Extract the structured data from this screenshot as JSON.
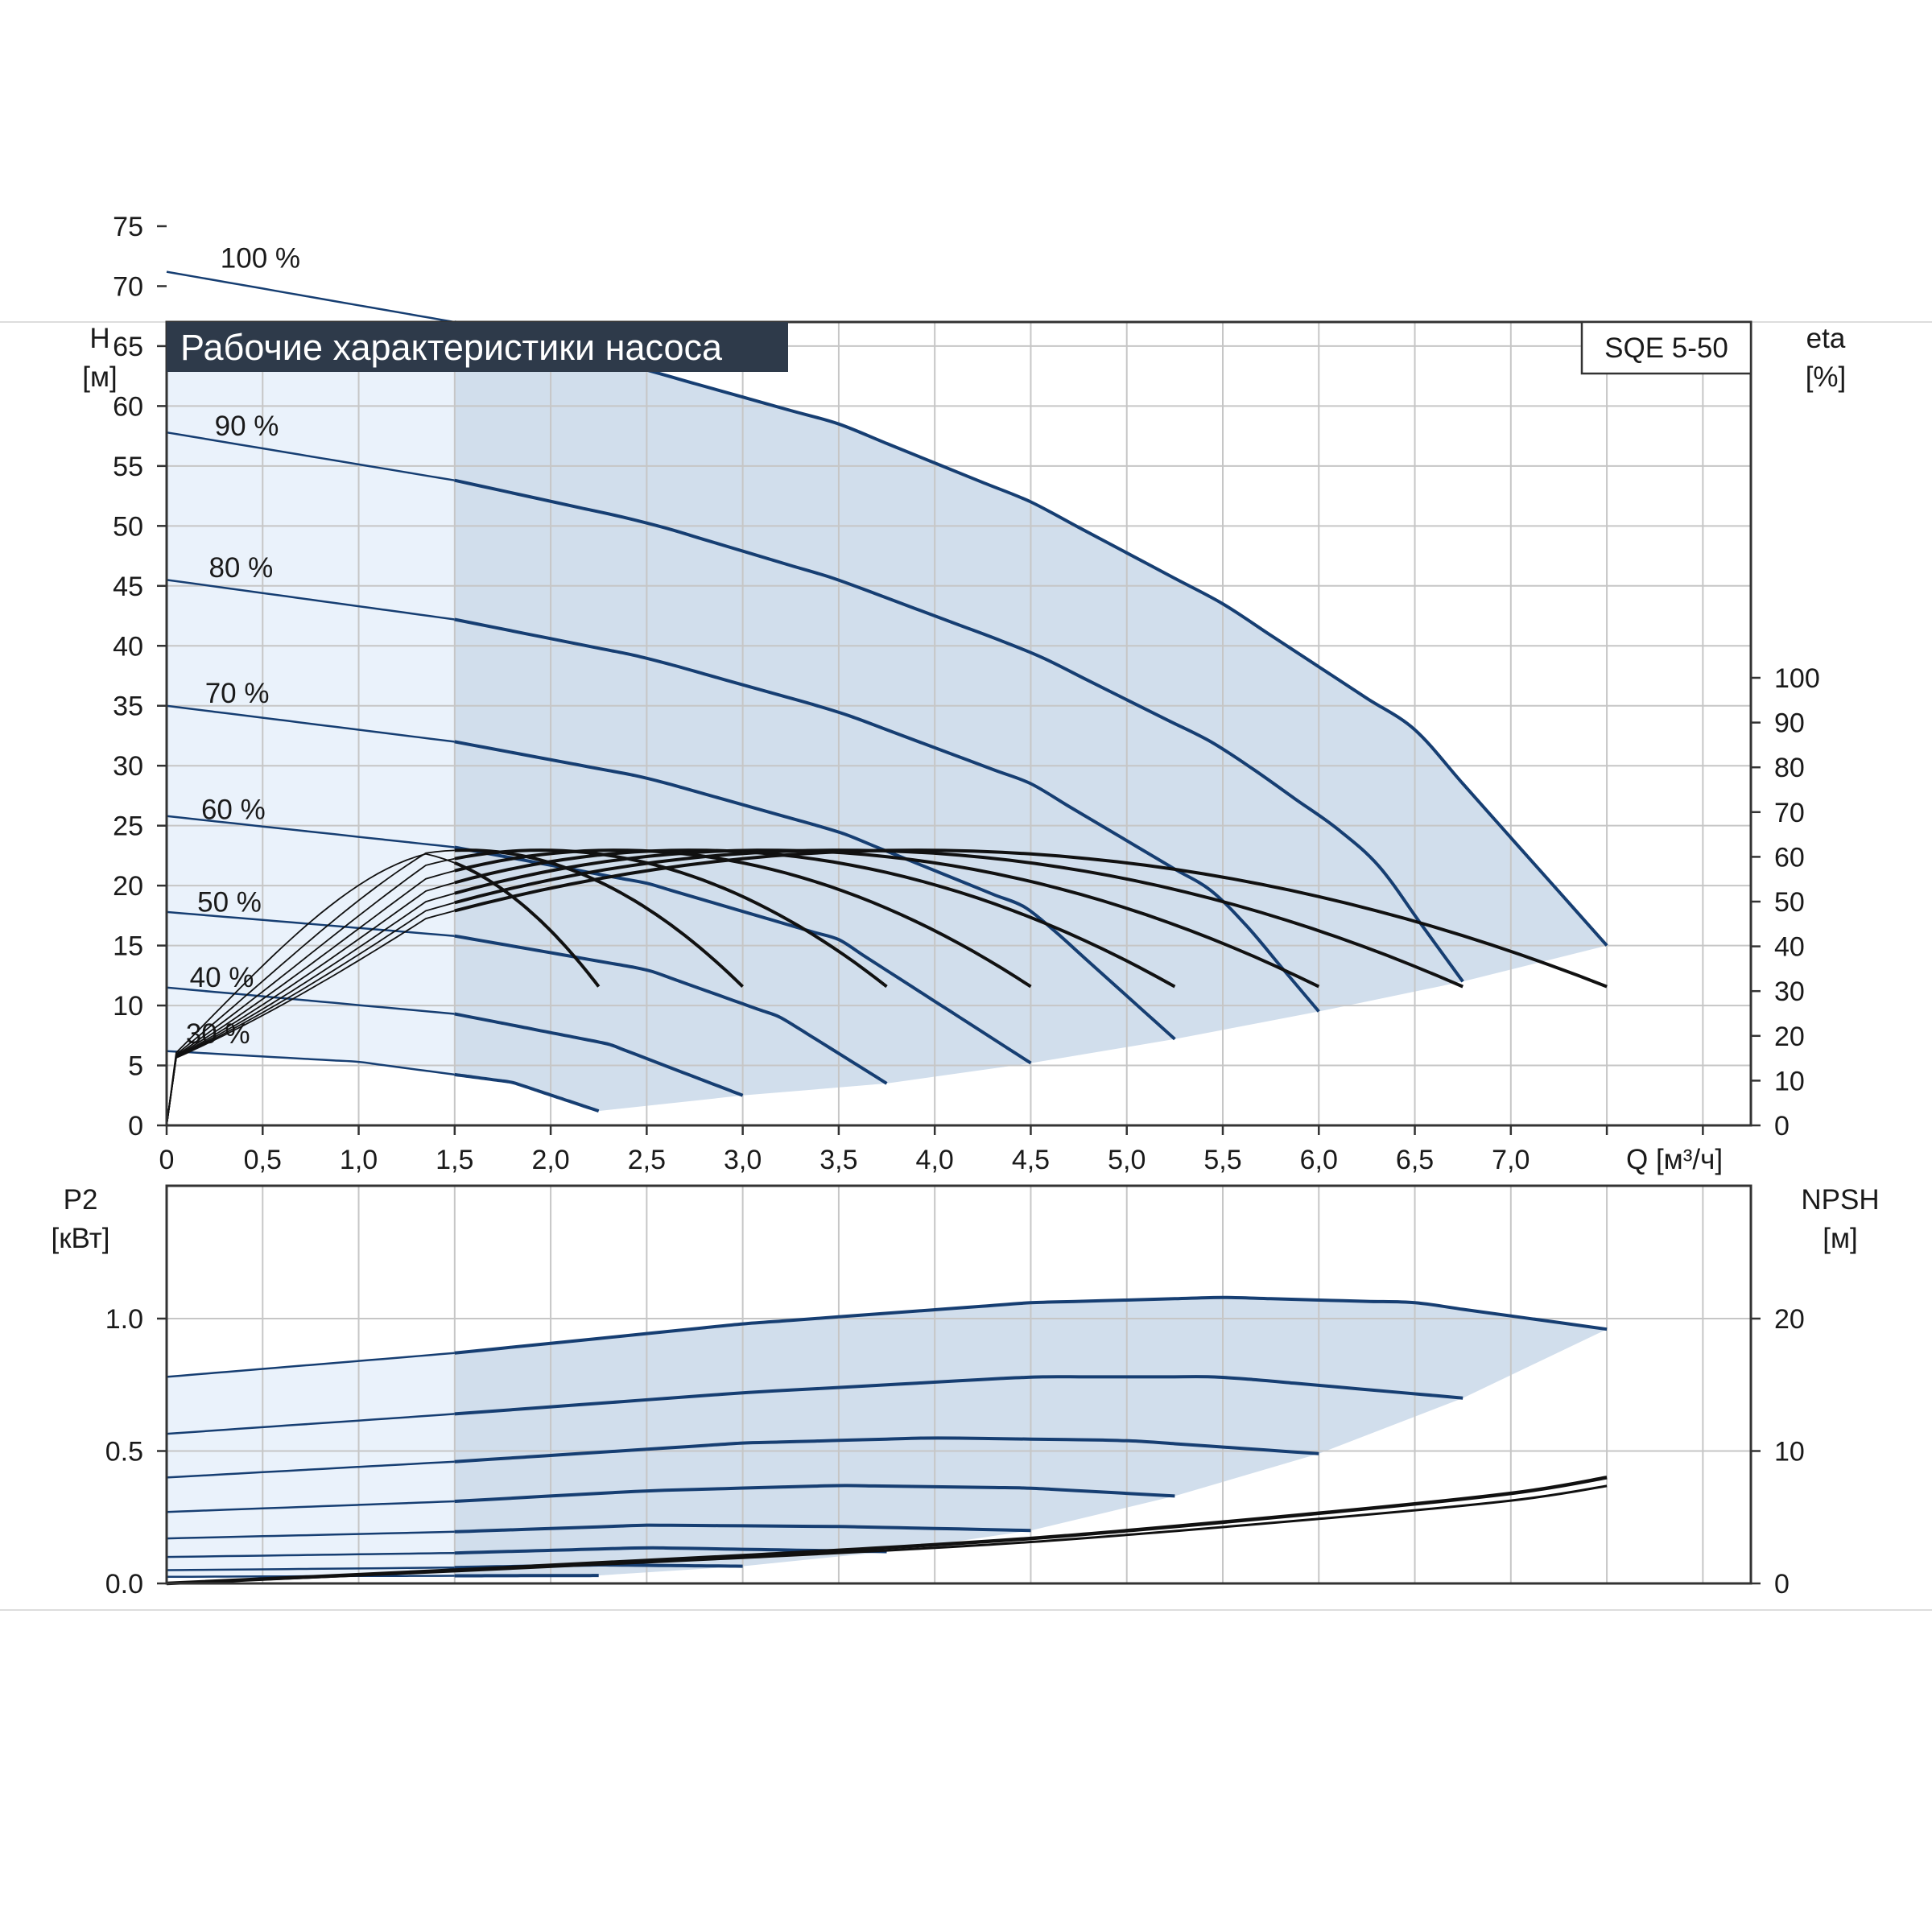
{
  "title": "Рабочие характеристики насоса",
  "model": "SQE 5-50",
  "top_axes": {
    "y_left_label": "H",
    "y_left_unit": "[м]",
    "y_right_label": "eta",
    "y_right_unit": "[%]",
    "x_label": "Q [м³/ч]",
    "y_left_ticks": [
      "0",
      "5",
      "10",
      "15",
      "20",
      "25",
      "30",
      "35",
      "40",
      "45",
      "50",
      "55",
      "60",
      "65",
      "70",
      "75"
    ],
    "y_right_ticks": [
      "0",
      "10",
      "20",
      "30",
      "40",
      "50",
      "60",
      "70",
      "80",
      "90",
      "100"
    ],
    "x_ticks": [
      "0",
      "0,5",
      "1,0",
      "1,5",
      "2,0",
      "2,5",
      "3,0",
      "3,5",
      "4,0",
      "4,5",
      "5,0",
      "5,5",
      "6,0",
      "6,5",
      "7,0"
    ]
  },
  "bottom_axes": {
    "y_left_label": "P2",
    "y_left_unit": "[кВт]",
    "y_right_label": "NPSH",
    "y_right_unit": "[м]",
    "y_left_ticks": [
      "0.0",
      "0.5",
      "1.0"
    ],
    "y_right_ticks": [
      "0",
      "10",
      "20"
    ]
  },
  "colors": {
    "curve": "#163e72",
    "eta_curve": "#111111",
    "area_fill": "#d1deec",
    "area_light": "#eaf2fb",
    "grid": "#c6c6c6",
    "title_bg": "#2e3a4a"
  },
  "chart_data": [
    {
      "type": "line",
      "panel": "top",
      "xlabel": "Q [м³/ч]",
      "ylabel": "H [м]",
      "y2label": "eta [%]",
      "xlim": [
        0,
        8.25
      ],
      "ylim": [
        0,
        75
      ],
      "y2lim": [
        0,
        100
      ],
      "grid": true,
      "head_curves": [
        {
          "name": "100 %",
          "points": [
            [
              0,
              71.2
            ],
            [
              1.5,
              67
            ],
            [
              2.5,
              63
            ],
            [
              3.5,
              58.5
            ],
            [
              4.5,
              52
            ],
            [
              5.5,
              43.5
            ],
            [
              6.5,
              33
            ],
            [
              7.5,
              15
            ]
          ]
        },
        {
          "name": "90 %",
          "points": [
            [
              0,
              57.8
            ],
            [
              1.5,
              53.8
            ],
            [
              2.5,
              50.3
            ],
            [
              3.5,
              45.5
            ],
            [
              4.5,
              39.5
            ],
            [
              5.5,
              31.5
            ],
            [
              6.25,
              23
            ],
            [
              6.75,
              12
            ]
          ]
        },
        {
          "name": "80 %",
          "points": [
            [
              0,
              45.5
            ],
            [
              1.5,
              42.2
            ],
            [
              2.5,
              39
            ],
            [
              3.5,
              34.5
            ],
            [
              4.5,
              28.5
            ],
            [
              5.5,
              19
            ],
            [
              6,
              9.5
            ]
          ]
        },
        {
          "name": "70 %",
          "points": [
            [
              0,
              35
            ],
            [
              1.5,
              32
            ],
            [
              2.5,
              29
            ],
            [
              3.5,
              24.5
            ],
            [
              4.5,
              18
            ],
            [
              5.25,
              7.2
            ]
          ]
        },
        {
          "name": "60 %",
          "points": [
            [
              0,
              25.8
            ],
            [
              1.5,
              23.2
            ],
            [
              2.5,
              20.2
            ],
            [
              3.5,
              15.5
            ],
            [
              4.5,
              5.2
            ]
          ]
        },
        {
          "name": "50 %",
          "points": [
            [
              0,
              17.8
            ],
            [
              1.5,
              15.8
            ],
            [
              2.5,
              13
            ],
            [
              3.2,
              9
            ],
            [
              3.75,
              3.5
            ]
          ]
        },
        {
          "name": "40 %",
          "points": [
            [
              0,
              11.5
            ],
            [
              1.5,
              9.3
            ],
            [
              2.3,
              6.8
            ],
            [
              3,
              2.5
            ]
          ]
        },
        {
          "name": "30 %",
          "points": [
            [
              0,
              6.2
            ],
            [
              1,
              5.3
            ],
            [
              1.8,
              3.6
            ],
            [
              2.25,
              1.2
            ]
          ]
        }
      ],
      "eta_curves": [
        {
          "qmax": 2.25,
          "eta_max": 61.5,
          "eta_end": 31
        },
        {
          "qmax": 3.0,
          "eta_max": 61.5,
          "eta_end": 31
        },
        {
          "qmax": 3.75,
          "eta_max": 61.5,
          "eta_end": 31
        },
        {
          "qmax": 4.5,
          "eta_max": 61.5,
          "eta_end": 31
        },
        {
          "qmax": 5.25,
          "eta_max": 61.5,
          "eta_end": 31
        },
        {
          "qmax": 6.0,
          "eta_max": 61.5,
          "eta_end": 31
        },
        {
          "qmax": 6.75,
          "eta_max": 61.5,
          "eta_end": 31
        },
        {
          "qmax": 7.5,
          "eta_max": 61.5,
          "eta_end": 31
        }
      ],
      "lower_boundary": [
        [
          2.25,
          1.2
        ],
        [
          3,
          2.5
        ],
        [
          3.75,
          3.5
        ],
        [
          4.5,
          5.2
        ],
        [
          5.25,
          7.2
        ],
        [
          6,
          9.5
        ],
        [
          6.75,
          12
        ],
        [
          7.5,
          15
        ]
      ]
    },
    {
      "type": "line",
      "panel": "bottom",
      "ylabel": "P2 [кВт]",
      "y2label": "NPSH [м]",
      "xlim": [
        0,
        8.25
      ],
      "ylim": [
        0,
        1.5
      ],
      "y2lim": [
        0,
        30
      ],
      "grid": true,
      "power_curves": [
        {
          "name": "100 %",
          "points": [
            [
              0,
              0.78
            ],
            [
              1.5,
              0.87
            ],
            [
              3,
              0.98
            ],
            [
              4.5,
              1.06
            ],
            [
              5.5,
              1.08
            ],
            [
              6.5,
              1.06
            ],
            [
              7.5,
              0.96
            ]
          ]
        },
        {
          "name": "90 %",
          "points": [
            [
              0,
              0.565
            ],
            [
              1.5,
              0.64
            ],
            [
              3,
              0.72
            ],
            [
              4.5,
              0.78
            ],
            [
              5.5,
              0.78
            ],
            [
              6.75,
              0.7
            ]
          ]
        },
        {
          "name": "80 %",
          "points": [
            [
              0,
              0.4
            ],
            [
              1.5,
              0.46
            ],
            [
              3,
              0.53
            ],
            [
              4,
              0.55
            ],
            [
              5,
              0.54
            ],
            [
              6,
              0.49
            ]
          ]
        },
        {
          "name": "70 %",
          "points": [
            [
              0,
              0.27
            ],
            [
              1.5,
              0.31
            ],
            [
              2.5,
              0.35
            ],
            [
              3.5,
              0.37
            ],
            [
              4.5,
              0.36
            ],
            [
              5.25,
              0.33
            ]
          ]
        },
        {
          "name": "60 %",
          "points": [
            [
              0,
              0.17
            ],
            [
              1.5,
              0.195
            ],
            [
              2.5,
              0.22
            ],
            [
              3.5,
              0.215
            ],
            [
              4.5,
              0.2
            ]
          ]
        },
        {
          "name": "50 %",
          "points": [
            [
              0,
              0.1
            ],
            [
              1.5,
              0.115
            ],
            [
              2.5,
              0.135
            ],
            [
              3.75,
              0.12
            ]
          ]
        },
        {
          "name": "40 %",
          "points": [
            [
              0,
              0.05
            ],
            [
              1.5,
              0.06
            ],
            [
              2.25,
              0.07
            ],
            [
              3,
              0.065
            ]
          ]
        },
        {
          "name": "30 %",
          "points": [
            [
              0,
              0.025
            ],
            [
              1,
              0.028
            ],
            [
              2.25,
              0.03
            ]
          ]
        }
      ],
      "npsh_curve": {
        "points": [
          [
            0,
            0
          ],
          [
            1.5,
            1
          ],
          [
            3,
            2.1
          ],
          [
            4.5,
            3.4
          ],
          [
            6,
            5.3
          ],
          [
            7,
            6.8
          ],
          [
            7.5,
            8
          ]
        ]
      }
    }
  ]
}
